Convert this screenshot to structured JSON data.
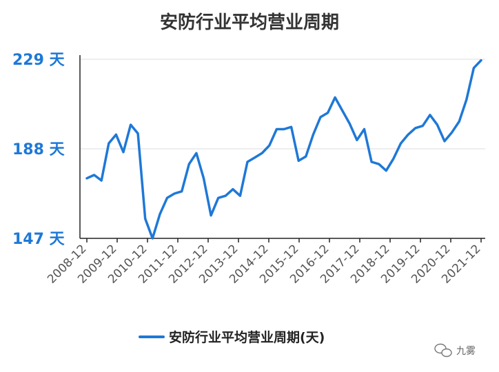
{
  "chart_data": {
    "type": "line",
    "title": "安防行业平均营业周期",
    "xlabel": "",
    "ylabel": "",
    "y_unit": "天",
    "ylim": [
      147,
      229
    ],
    "yticks": [
      "147",
      "188",
      "229"
    ],
    "x_tick_labels": [
      "2008-12",
      "2009-12",
      "2010-12",
      "2011-12",
      "2012-12",
      "2013-12",
      "2014-12",
      "2015-12",
      "2016-12",
      "2017-12",
      "2018-12",
      "2019-12",
      "2020-12",
      "2021-12"
    ],
    "grid": {
      "horizontal": true,
      "vertical": false
    },
    "legend_position": "bottom",
    "series": [
      {
        "name": "安防行业平均营业周期(天)",
        "color": "#1e78d7",
        "values": [
          174.5,
          176,
          173.5,
          190.5,
          194.5,
          186.5,
          199,
          195,
          156,
          147,
          158,
          165.5,
          167.5,
          168.5,
          181,
          186,
          174.5,
          157.5,
          165.5,
          166.5,
          169.5,
          166.5,
          182,
          184,
          186,
          189.5,
          197,
          197,
          198,
          182.5,
          184.5,
          194.5,
          202.5,
          204.5,
          211.5,
          205.5,
          199.5,
          192,
          197,
          182,
          181,
          178,
          183.5,
          190.5,
          194.5,
          197.5,
          198.5,
          203.5,
          199,
          191.5,
          195.5,
          200.5,
          210.5,
          225,
          228.5
        ]
      }
    ]
  },
  "legend": {
    "label": "安防行业平均营业周期(天)"
  },
  "watermark": {
    "label": "九雾",
    "icon": "wechat-bubbles-icon"
  }
}
